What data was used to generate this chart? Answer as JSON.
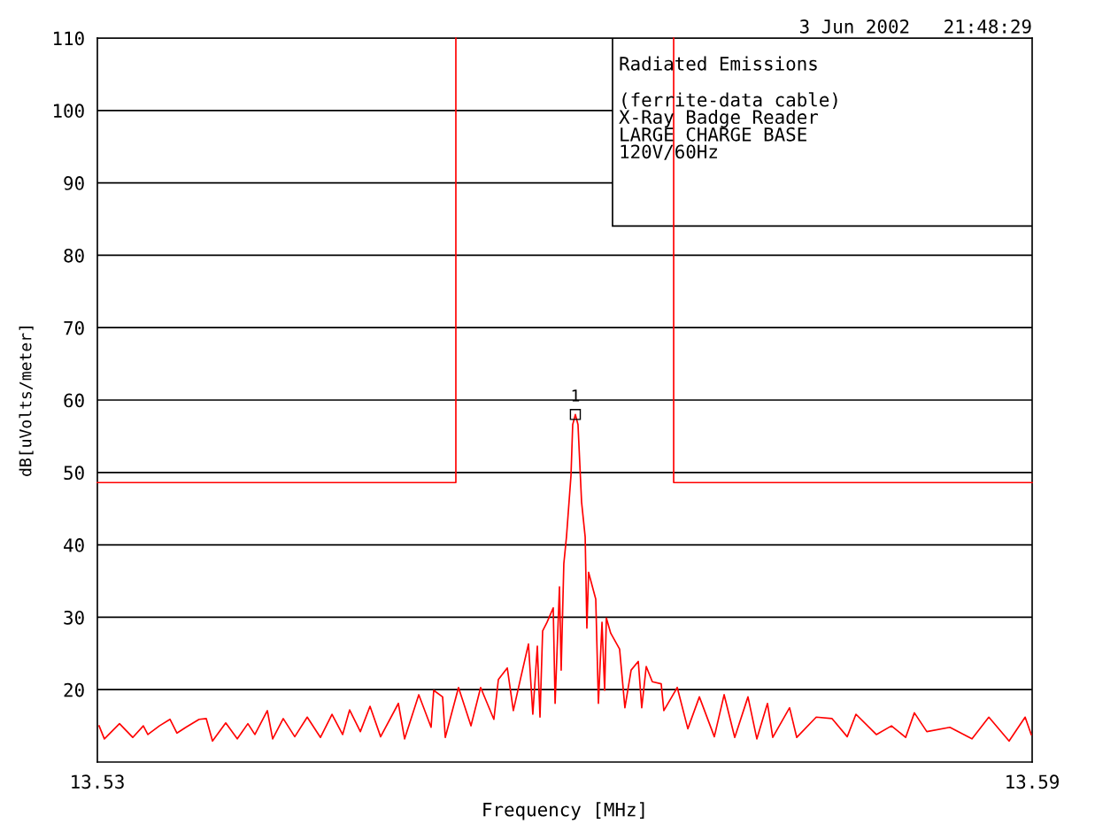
{
  "chart_data": {
    "type": "line",
    "title": "3 Jun 2002   21:48:29",
    "xlabel": "Frequency [MHz]",
    "ylabel": "dB[uVolts/meter]",
    "xlim": [
      13.53,
      13.59
    ],
    "xticks": [
      13.53,
      13.59
    ],
    "ylim": [
      10,
      110
    ],
    "yticks": [
      20,
      30,
      40,
      50,
      60,
      70,
      80,
      90,
      100,
      110
    ],
    "grid": "y",
    "marker": "none",
    "line_style": "solid",
    "annotations": [
      "Radiated Emissions",
      "(ferrite-data cable)",
      "X-Ray Badge Reader",
      "LARGE CHARGE BASE",
      "120V/60Hz",
      {
        "text": "1",
        "x": 13.56068,
        "y": 58
      }
    ],
    "series": [
      {
        "color": "#ff0000",
        "x": [
          13.53,
          13.55301,
          13.55301,
          13.56,
          13.56699,
          13.56699,
          13.59
        ],
        "values": [
          48.6,
          48.6,
          110,
          null,
          110,
          48.6,
          48.6
        ]
      },
      {
        "color": "#ff0000",
        "x": [
          13.53011,
          13.53045,
          13.53142,
          13.53227,
          13.53295,
          13.53324,
          13.53398,
          13.53466,
          13.53511,
          13.53568,
          13.53653,
          13.53699,
          13.53739,
          13.53824,
          13.53898,
          13.53966,
          13.54011,
          13.54091,
          13.54125,
          13.54193,
          13.54267,
          13.54347,
          13.54432,
          13.54506,
          13.54574,
          13.54619,
          13.54688,
          13.5475,
          13.54818,
          13.54932,
          13.54972,
          13.55063,
          13.55142,
          13.55159,
          13.55216,
          13.55233,
          13.55318,
          13.55398,
          13.5546,
          13.55545,
          13.55574,
          13.55631,
          13.5567,
          13.55716,
          13.55767,
          13.55795,
          13.55824,
          13.55841,
          13.55858,
          13.55886,
          13.55926,
          13.55938,
          13.55966,
          13.55977,
          13.55994,
          13.56011,
          13.5604,
          13.56051,
          13.56068,
          13.56085,
          13.56108,
          13.56131,
          13.56142,
          13.56153,
          13.56199,
          13.56216,
          13.56239,
          13.56256,
          13.56267,
          13.56295,
          13.56352,
          13.56386,
          13.56426,
          13.56472,
          13.56494,
          13.56523,
          13.56562,
          13.56619,
          13.56636,
          13.56722,
          13.5679,
          13.56864,
          13.5696,
          13.57023,
          13.57091,
          13.57176,
          13.57233,
          13.57301,
          13.57335,
          13.57443,
          13.57489,
          13.57614,
          13.57716,
          13.57813,
          13.57869,
          13.58,
          13.58097,
          13.58188,
          13.58244,
          13.58324,
          13.58472,
          13.58614,
          13.58722,
          13.58852,
          13.58955,
          13.58994
        ],
        "values": [
          15.0,
          13.2,
          15.3,
          13.4,
          15.0,
          13.8,
          15.0,
          15.9,
          14.0,
          14.8,
          15.9,
          16.0,
          12.9,
          15.4,
          13.2,
          15.3,
          13.8,
          17.1,
          13.2,
          16.0,
          13.5,
          16.2,
          13.4,
          16.6,
          13.8,
          17.2,
          14.2,
          17.7,
          13.5,
          18.1,
          13.2,
          19.3,
          14.8,
          19.9,
          19.0,
          13.4,
          20.3,
          15.0,
          20.3,
          15.9,
          21.4,
          23.0,
          17.1,
          21.5,
          26.3,
          16.6,
          26.0,
          16.2,
          28.1,
          29.3,
          31.3,
          18.1,
          34.2,
          22.7,
          37.4,
          41.1,
          49.6,
          56.6,
          58.0,
          56.6,
          45.9,
          41.1,
          28.5,
          36.2,
          32.5,
          18.1,
          29.3,
          19.9,
          29.9,
          27.8,
          25.6,
          17.5,
          22.7,
          23.9,
          17.5,
          23.2,
          21.1,
          20.8,
          17.1,
          20.3,
          14.6,
          19.0,
          13.5,
          19.3,
          13.4,
          19.0,
          13.2,
          18.1,
          13.4,
          17.5,
          13.4,
          16.2,
          16.0,
          13.5,
          16.6,
          13.8,
          15.0,
          13.4,
          16.8,
          14.2,
          14.8,
          13.2,
          16.2,
          12.9,
          16.2,
          13.8
        ]
      }
    ]
  }
}
